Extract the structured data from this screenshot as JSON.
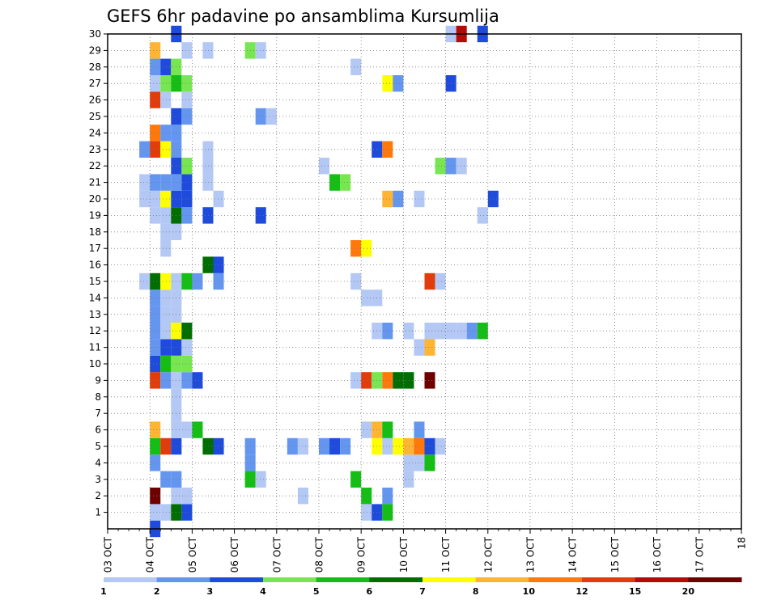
{
  "chart_data": {
    "type": "heatmap",
    "title": "GEFS 6hr padavine po ansamblima Kursumlija",
    "xlabel": "",
    "ylabel": "",
    "x_tick_labels": [
      "03 OCT",
      "04 OCT",
      "05 OCT",
      "06 OCT",
      "07 OCT",
      "08 OCT",
      "09 OCT",
      "10 OCT",
      "11 OCT",
      "12 OCT",
      "13 OCT",
      "14 OCT",
      "15 OCT",
      "16 OCT",
      "17 OCT",
      "18"
    ],
    "y_tick_labels": [
      "1",
      "2",
      "3",
      "4",
      "5",
      "6",
      "7",
      "8",
      "9",
      "10",
      "11",
      "12",
      "13",
      "14",
      "15",
      "16",
      "17",
      "18",
      "19",
      "20",
      "21",
      "22",
      "23",
      "24",
      "25",
      "26",
      "27",
      "28",
      "29",
      "30"
    ],
    "x_range": [
      "03 OCT 00Z",
      "18 OCT 00Z"
    ],
    "time_step_hours": 6,
    "y_range": [
      0,
      30
    ],
    "grid": "dotted",
    "colorbar": {
      "position": "bottom",
      "labels": [
        "1",
        "2",
        "3",
        "4",
        "5",
        "6",
        "7",
        "8",
        "10",
        "12",
        "15",
        "20"
      ],
      "colors": [
        "#b4c8f5",
        "#6496f0",
        "#1e4bdc",
        "#78e650",
        "#14be14",
        "#006e00",
        "#ffff00",
        "#ffb432",
        "#ff780a",
        "#e13c0a",
        "#b40a0a",
        "#6e0000"
      ]
    },
    "cells_note": "cells: [member, step, color_index]; step counts 6-hour periods from 03 OCT 00Z",
    "cells": [
      [
        1,
        4,
        0
      ],
      [
        1,
        5,
        0
      ],
      [
        1,
        6,
        5
      ],
      [
        1,
        7,
        2
      ],
      [
        1,
        24,
        0
      ],
      [
        1,
        25,
        2
      ],
      [
        1,
        26,
        4
      ],
      [
        2,
        4,
        11
      ],
      [
        2,
        6,
        0
      ],
      [
        2,
        7,
        0
      ],
      [
        2,
        24,
        4
      ],
      [
        2,
        26,
        1
      ],
      [
        2,
        18,
        0
      ],
      [
        3,
        5,
        1
      ],
      [
        3,
        6,
        1
      ],
      [
        3,
        13,
        4
      ],
      [
        3,
        14,
        0
      ],
      [
        3,
        23,
        4
      ],
      [
        3,
        28,
        0
      ],
      [
        4,
        4,
        1
      ],
      [
        4,
        13,
        1
      ],
      [
        4,
        28,
        0
      ],
      [
        4,
        29,
        0
      ],
      [
        4,
        30,
        4
      ],
      [
        5,
        4,
        4
      ],
      [
        5,
        5,
        9
      ],
      [
        5,
        6,
        2
      ],
      [
        5,
        9,
        5
      ],
      [
        5,
        10,
        2
      ],
      [
        5,
        13,
        1
      ],
      [
        5,
        17,
        1
      ],
      [
        5,
        18,
        0
      ],
      [
        5,
        20,
        1
      ],
      [
        5,
        21,
        2
      ],
      [
        5,
        22,
        1
      ],
      [
        5,
        25,
        6
      ],
      [
        5,
        26,
        0
      ],
      [
        5,
        27,
        6
      ],
      [
        5,
        28,
        7
      ],
      [
        5,
        29,
        8
      ],
      [
        5,
        30,
        2
      ],
      [
        5,
        31,
        0
      ],
      [
        6,
        4,
        7
      ],
      [
        6,
        6,
        0
      ],
      [
        6,
        7,
        0
      ],
      [
        6,
        8,
        4
      ],
      [
        6,
        24,
        0
      ],
      [
        6,
        25,
        7
      ],
      [
        6,
        26,
        4
      ],
      [
        6,
        29,
        1
      ],
      [
        7,
        6,
        0
      ],
      [
        8,
        6,
        0
      ],
      [
        9,
        4,
        9
      ],
      [
        9,
        5,
        1
      ],
      [
        9,
        6,
        0
      ],
      [
        9,
        7,
        1
      ],
      [
        9,
        8,
        2
      ],
      [
        9,
        23,
        0
      ],
      [
        9,
        24,
        9
      ],
      [
        9,
        25,
        3
      ],
      [
        9,
        26,
        8
      ],
      [
        9,
        27,
        5
      ],
      [
        9,
        28,
        5
      ],
      [
        9,
        30,
        11
      ],
      [
        10,
        4,
        2
      ],
      [
        10,
        5,
        4
      ],
      [
        10,
        6,
        3
      ],
      [
        10,
        7,
        3
      ],
      [
        11,
        4,
        1
      ],
      [
        11,
        5,
        2
      ],
      [
        11,
        6,
        2
      ],
      [
        11,
        7,
        0
      ],
      [
        11,
        29,
        0
      ],
      [
        11,
        30,
        7
      ],
      [
        12,
        4,
        1
      ],
      [
        12,
        5,
        0
      ],
      [
        12,
        6,
        6
      ],
      [
        12,
        7,
        5
      ],
      [
        12,
        25,
        0
      ],
      [
        12,
        26,
        1
      ],
      [
        12,
        28,
        0
      ],
      [
        12,
        30,
        0
      ],
      [
        12,
        31,
        0
      ],
      [
        12,
        32,
        0
      ],
      [
        12,
        33,
        0
      ],
      [
        12,
        34,
        1
      ],
      [
        12,
        35,
        4
      ],
      [
        13,
        4,
        1
      ],
      [
        13,
        5,
        0
      ],
      [
        13,
        6,
        0
      ],
      [
        14,
        4,
        1
      ],
      [
        14,
        5,
        0
      ],
      [
        14,
        6,
        0
      ],
      [
        14,
        24,
        0
      ],
      [
        14,
        25,
        0
      ],
      [
        15,
        3,
        0
      ],
      [
        15,
        4,
        5
      ],
      [
        15,
        5,
        6
      ],
      [
        15,
        6,
        0
      ],
      [
        15,
        7,
        4
      ],
      [
        15,
        8,
        1
      ],
      [
        15,
        10,
        1
      ],
      [
        15,
        23,
        0
      ],
      [
        15,
        30,
        9
      ],
      [
        15,
        31,
        0
      ],
      [
        16,
        9,
        5
      ],
      [
        16,
        10,
        2
      ],
      [
        17,
        5,
        0
      ],
      [
        17,
        23,
        8
      ],
      [
        17,
        24,
        6
      ],
      [
        18,
        5,
        0
      ],
      [
        18,
        6,
        0
      ],
      [
        19,
        4,
        0
      ],
      [
        19,
        5,
        0
      ],
      [
        19,
        6,
        5
      ],
      [
        19,
        7,
        1
      ],
      [
        19,
        9,
        2
      ],
      [
        19,
        14,
        2
      ],
      [
        19,
        35,
        0
      ],
      [
        20,
        3,
        0
      ],
      [
        20,
        4,
        0
      ],
      [
        20,
        5,
        6
      ],
      [
        20,
        6,
        2
      ],
      [
        20,
        7,
        2
      ],
      [
        20,
        10,
        0
      ],
      [
        20,
        26,
        7
      ],
      [
        20,
        27,
        1
      ],
      [
        20,
        29,
        0
      ],
      [
        20,
        36,
        2
      ],
      [
        21,
        3,
        0
      ],
      [
        21,
        4,
        1
      ],
      [
        21,
        5,
        1
      ],
      [
        21,
        6,
        1
      ],
      [
        21,
        7,
        2
      ],
      [
        21,
        9,
        0
      ],
      [
        21,
        21,
        4
      ],
      [
        21,
        22,
        3
      ],
      [
        22,
        6,
        2
      ],
      [
        22,
        7,
        3
      ],
      [
        22,
        9,
        0
      ],
      [
        22,
        20,
        0
      ],
      [
        22,
        31,
        3
      ],
      [
        22,
        32,
        1
      ],
      [
        22,
        33,
        0
      ],
      [
        23,
        3,
        1
      ],
      [
        23,
        4,
        9
      ],
      [
        23,
        5,
        6
      ],
      [
        23,
        6,
        1
      ],
      [
        23,
        9,
        0
      ],
      [
        23,
        25,
        2
      ],
      [
        23,
        26,
        8
      ],
      [
        24,
        4,
        8
      ],
      [
        24,
        5,
        1
      ],
      [
        24,
        6,
        1
      ],
      [
        25,
        6,
        2
      ],
      [
        25,
        7,
        1
      ],
      [
        25,
        14,
        1
      ],
      [
        25,
        15,
        0
      ],
      [
        26,
        4,
        9
      ],
      [
        26,
        5,
        0
      ],
      [
        26,
        7,
        0
      ],
      [
        27,
        4,
        0
      ],
      [
        27,
        5,
        3
      ],
      [
        27,
        6,
        4
      ],
      [
        27,
        7,
        3
      ],
      [
        27,
        26,
        6
      ],
      [
        27,
        27,
        1
      ],
      [
        27,
        32,
        2
      ],
      [
        28,
        4,
        1
      ],
      [
        28,
        5,
        2
      ],
      [
        28,
        6,
        3
      ],
      [
        28,
        23,
        0
      ],
      [
        29,
        4,
        7
      ],
      [
        29,
        7,
        0
      ],
      [
        29,
        9,
        0
      ],
      [
        29,
        13,
        3
      ],
      [
        29,
        14,
        0
      ],
      [
        30,
        6,
        2
      ],
      [
        30,
        32,
        0
      ],
      [
        30,
        33,
        10
      ],
      [
        30,
        35,
        2
      ],
      [
        0,
        4,
        2
      ]
    ]
  }
}
